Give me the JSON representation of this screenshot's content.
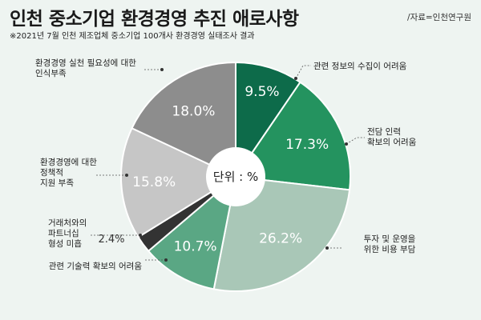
{
  "header": {
    "title": "인천 중소기업 환경경영 추진 애로사항",
    "source": "/자료=인천연구원",
    "subtitle": "※2021년 7월 인천 제조업체 중소기업 100개사 환경경영 실태조사 결과"
  },
  "chart_data": {
    "type": "pie",
    "center_label": "단위 : %",
    "slices": [
      {
        "label": "관련 정보의 수집이 어려움",
        "value": 9.5,
        "display": "9.5%",
        "color": "#0d6b4a"
      },
      {
        "label": "전담 인력 확보의 어려움",
        "value": 17.3,
        "display": "17.3%",
        "color": "#24935f"
      },
      {
        "label": "투자 및 운영을 위한 비용 부담",
        "value": 26.2,
        "display": "26.2%",
        "color": "#a9c7b7"
      },
      {
        "label": "관련 기술력 확보의 어려움",
        "value": 10.7,
        "display": "10.7%",
        "color": "#5aa784"
      },
      {
        "label": "거래처와의 파트너십 형성 미흡",
        "value": 2.4,
        "display": "2.4%",
        "color": "#333333"
      },
      {
        "label": "환경경영에 대한 정책적 지원 부족",
        "value": 15.8,
        "display": "15.8%",
        "color": "#c6c6c6"
      },
      {
        "label": "환경경영 실천 필요성에 대한 인식부족",
        "value": 18.0,
        "display": "18.0%",
        "color": "#8d8d8d"
      }
    ],
    "callouts": [
      {
        "lines": [
          "관련 정보의 수집이 어려움"
        ]
      },
      {
        "lines": [
          "전담 인력",
          "확보의 어려움"
        ]
      },
      {
        "lines": [
          "투자 및 운영을",
          "위한 비용 부담"
        ]
      },
      {
        "lines": [
          "관련 기술력 확보의 어려움"
        ]
      },
      {
        "lines": [
          "거래처와의",
          "파트너십",
          "형성 미흡"
        ]
      },
      {
        "lines": [
          "환경경영에 대한",
          "정책적",
          "지원 부족"
        ]
      },
      {
        "lines": [
          "환경경영 실천 필요성에 대한",
          "인식부족"
        ]
      }
    ]
  }
}
